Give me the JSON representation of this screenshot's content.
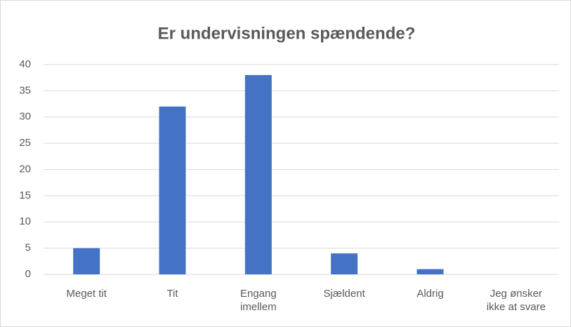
{
  "chart_data": {
    "type": "bar",
    "title": "Er undervisningen spændende?",
    "categories": [
      "Meget tit",
      "Tit",
      "Engang imellem",
      "Sjældent",
      "Aldrig",
      "Jeg ønsker ikke at svare"
    ],
    "values": [
      5,
      32,
      38,
      4,
      1,
      0
    ],
    "color": "#4472c4",
    "ylim": [
      0,
      40
    ],
    "yticks": [
      0,
      5,
      10,
      15,
      20,
      25,
      30,
      35,
      40
    ],
    "grid": true
  }
}
